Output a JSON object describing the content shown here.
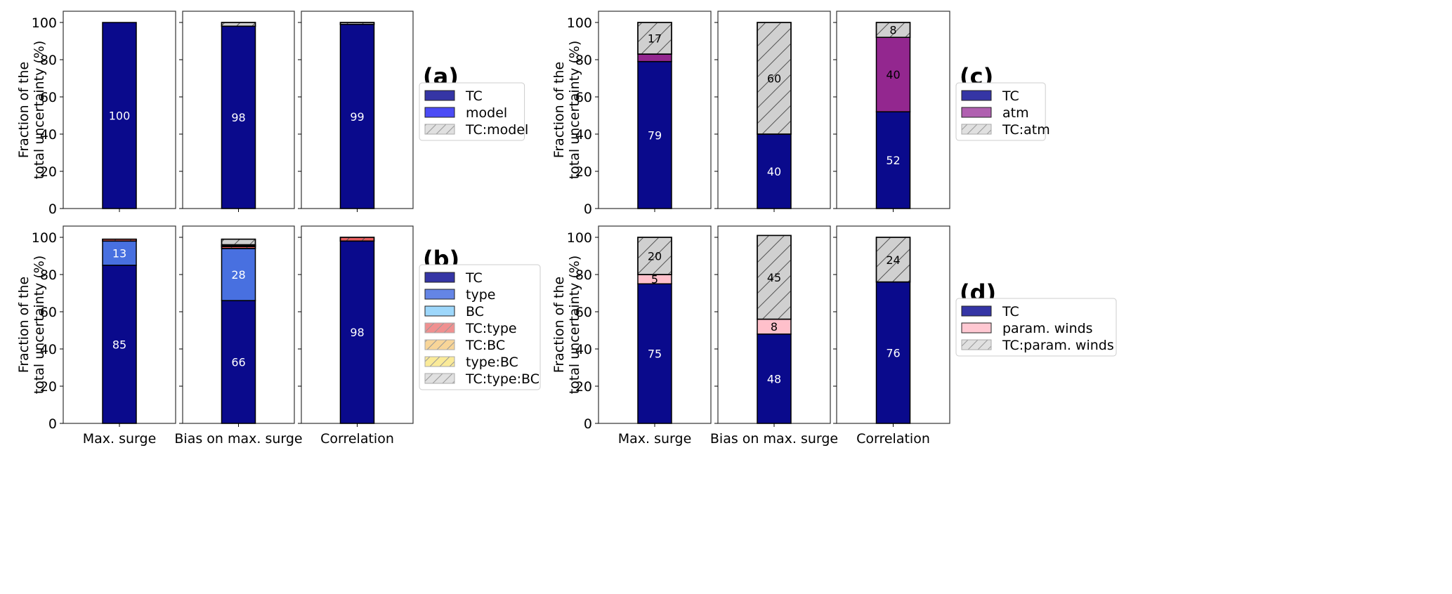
{
  "figure": {
    "ylabel_line1": "Fraction of the",
    "ylabel_line2": "total uncertainty (%)"
  },
  "chart_data": [
    {
      "panel": "(a)",
      "type": "bar",
      "stacked": true,
      "categories": [
        "Max. surge",
        "Bias on max. surge",
        "Correlation"
      ],
      "ylabel": "Fraction of the\ntotal uncertainty (%)",
      "ylim": [
        0,
        106
      ],
      "yticks": [
        0,
        20,
        40,
        60,
        80,
        100
      ],
      "legend_position": "right",
      "series": [
        {
          "name": "TC",
          "color": "#0a0a8c",
          "legend_color": "#3535a5",
          "hatch": false,
          "values": [
            100,
            98,
            99
          ],
          "labels": [
            "100",
            "98",
            "99"
          ],
          "label_color": "#ffffff"
        },
        {
          "name": "model",
          "color": "#4646f5",
          "legend_color": "#4b4bf5",
          "hatch": false,
          "values": [
            0,
            0,
            0
          ],
          "labels": [
            "",
            "",
            ""
          ],
          "label_color": "#ffffff"
        },
        {
          "name": "TC:model",
          "color": "#d0d0d0",
          "legend_color": "#e0e0e0",
          "hatch": true,
          "values": [
            0,
            2,
            1
          ],
          "labels": [
            "",
            "",
            ""
          ],
          "label_color": "#000000"
        }
      ]
    },
    {
      "panel": "(b)",
      "type": "bar",
      "stacked": true,
      "categories": [
        "Max. surge",
        "Bias on max. surge",
        "Correlation"
      ],
      "ylabel": "Fraction of the\ntotal uncertainty (%)",
      "ylim": [
        0,
        106
      ],
      "yticks": [
        0,
        20,
        40,
        60,
        80,
        100
      ],
      "legend_position": "right",
      "series": [
        {
          "name": "TC",
          "color": "#0a0a8c",
          "legend_color": "#3535a5",
          "hatch": false,
          "values": [
            85,
            66,
            98
          ],
          "labels": [
            "85",
            "66",
            "98"
          ],
          "label_color": "#ffffff"
        },
        {
          "name": "type",
          "color": "#4870e0",
          "legend_color": "#6485e6",
          "hatch": false,
          "values": [
            13,
            28,
            0
          ],
          "labels": [
            "13",
            "28",
            ""
          ],
          "label_color": "#ffffff"
        },
        {
          "name": "BC",
          "color": "#87cefa",
          "legend_color": "#9dd7fb",
          "hatch": false,
          "values": [
            0,
            0,
            0
          ],
          "labels": [
            "",
            "",
            ""
          ],
          "label_color": "#000000"
        },
        {
          "name": "TC:type",
          "color": "#e86060",
          "legend_color": "#f09090",
          "hatch": true,
          "values": [
            1,
            1,
            2
          ],
          "labels": [
            "",
            "",
            ""
          ],
          "label_color": "#000000"
        },
        {
          "name": "TC:BC",
          "color": "#f5c070",
          "legend_color": "#f8d598",
          "hatch": true,
          "values": [
            0,
            0.5,
            0
          ],
          "labels": [
            "",
            "",
            ""
          ],
          "label_color": "#000000"
        },
        {
          "name": "type:BC",
          "color": "#f8e070",
          "legend_color": "#faea98",
          "hatch": true,
          "values": [
            0,
            0.5,
            0
          ],
          "labels": [
            "",
            "",
            ""
          ],
          "label_color": "#000000"
        },
        {
          "name": "TC:type:BC",
          "color": "#d0d0d0",
          "legend_color": "#e0e0e0",
          "hatch": true,
          "values": [
            0,
            3,
            0
          ],
          "labels": [
            "",
            "",
            ""
          ],
          "label_color": "#000000"
        }
      ]
    },
    {
      "panel": "(c)",
      "type": "bar",
      "stacked": true,
      "categories": [
        "Max. surge",
        "Bias on max. surge",
        "Correlation"
      ],
      "ylabel": "Fraction of the\ntotal uncertainty (%)",
      "ylim": [
        0,
        106
      ],
      "yticks": [
        0,
        20,
        40,
        60,
        80,
        100
      ],
      "legend_position": "right",
      "series": [
        {
          "name": "TC",
          "color": "#0a0a8c",
          "legend_color": "#3535a5",
          "hatch": false,
          "values": [
            79,
            40,
            52
          ],
          "labels": [
            "79",
            "40",
            "52"
          ],
          "label_color": "#ffffff"
        },
        {
          "name": "atm",
          "color": "#93278f",
          "legend_color": "#b060b0",
          "hatch": false,
          "values": [
            4,
            0,
            40
          ],
          "labels": [
            "",
            "",
            "40"
          ],
          "label_color": "#000000"
        },
        {
          "name": "TC:atm",
          "color": "#d0d0d0",
          "legend_color": "#e0e0e0",
          "hatch": true,
          "values": [
            17,
            60,
            8
          ],
          "labels": [
            "17",
            "60",
            "8"
          ],
          "label_color": "#000000"
        }
      ]
    },
    {
      "panel": "(d)",
      "type": "bar",
      "stacked": true,
      "categories": [
        "Max. surge",
        "Bias on max. surge",
        "Correlation"
      ],
      "ylabel": "Fraction of the\ntotal uncertainty (%)",
      "ylim": [
        0,
        106
      ],
      "yticks": [
        0,
        20,
        40,
        60,
        80,
        100
      ],
      "legend_position": "right",
      "series": [
        {
          "name": "TC",
          "color": "#0a0a8c",
          "legend_color": "#3535a5",
          "hatch": false,
          "values": [
            75,
            48,
            76
          ],
          "labels": [
            "75",
            "48",
            "76"
          ],
          "label_color": "#ffffff"
        },
        {
          "name": "param. winds",
          "color": "#ffc0cb",
          "legend_color": "#ffc8d2",
          "hatch": false,
          "values": [
            5,
            8,
            0
          ],
          "labels": [
            "5",
            "8",
            ""
          ],
          "label_color": "#000000"
        },
        {
          "name": "TC:param. winds",
          "color": "#d0d0d0",
          "legend_color": "#e0e0e0",
          "hatch": true,
          "values": [
            20,
            45,
            24
          ],
          "labels": [
            "20",
            "45",
            "24"
          ],
          "label_color": "#000000"
        }
      ]
    }
  ]
}
